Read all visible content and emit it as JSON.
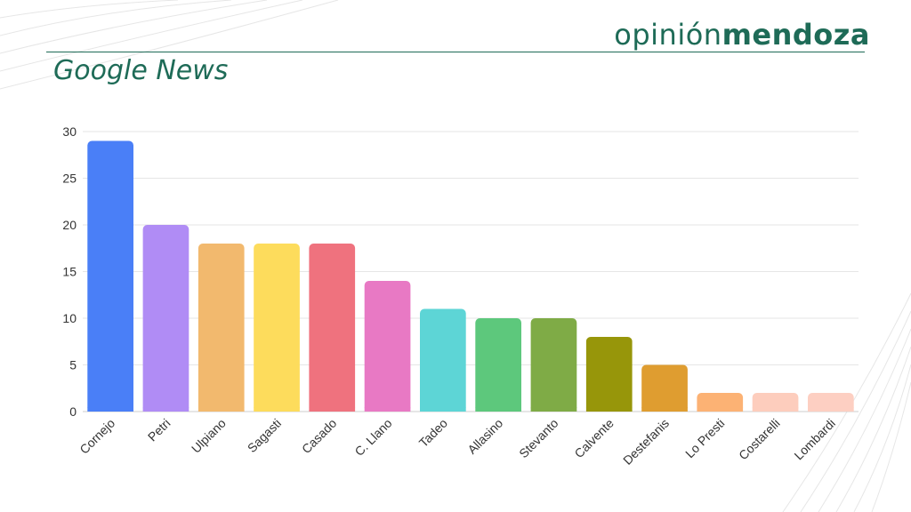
{
  "brand": {
    "part1": "opinión",
    "part2": "mendoza"
  },
  "colors": {
    "brand": "#1e6b57"
  },
  "chart_data": {
    "type": "bar",
    "title": "Google News",
    "xlabel": "",
    "ylabel": "",
    "ylim": [
      0,
      30
    ],
    "yticks": [
      0,
      5,
      10,
      15,
      20,
      25,
      30
    ],
    "grid": true,
    "categories": [
      "Cornejo",
      "Petri",
      "Ulpiano",
      "Sagasti",
      "Casado",
      "C. Llano",
      "Tadeo",
      "Allasino",
      "Stevanto",
      "Calvente",
      "Destefanis",
      "Lo Presti",
      "Costarelli",
      "Lombardi"
    ],
    "values": [
      29,
      20,
      18,
      18,
      18,
      14,
      11,
      10,
      10,
      8,
      5,
      2,
      2,
      2
    ],
    "colors": [
      "#4a7ff7",
      "#b08cf5",
      "#f2b96e",
      "#fddc5c",
      "#ef727e",
      "#e879c4",
      "#5dd5d6",
      "#5dc87c",
      "#7fab46",
      "#97960a",
      "#df9d30",
      "#fcb274",
      "#fdcdbd",
      "#fdcfc2"
    ]
  }
}
